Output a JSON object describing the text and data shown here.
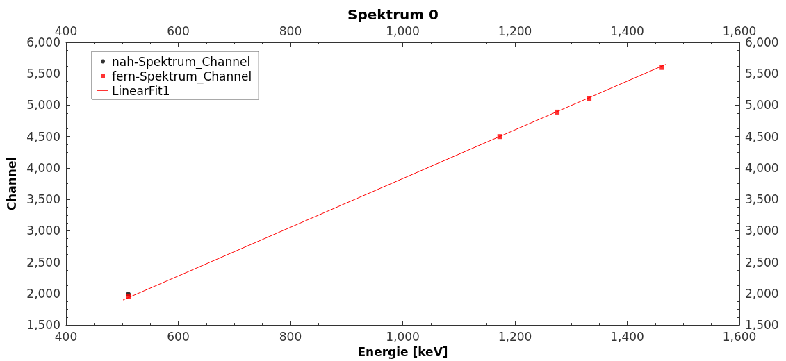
{
  "chart_data": {
    "type": "scatter",
    "title": "Spektrum 0",
    "xlabel": "Energie [keV]",
    "ylabel": "Channel",
    "xlim": [
      400,
      1600
    ],
    "xticks": [
      400,
      600,
      800,
      {
        "value": 1000,
        "label": "1,000"
      },
      {
        "value": 1200,
        "label": "1,200"
      },
      {
        "value": 1400,
        "label": "1,400"
      },
      {
        "value": 1600,
        "label": "1,600"
      }
    ],
    "x2lim": [
      400,
      1600
    ],
    "x2ticks": [
      400,
      600,
      800,
      {
        "value": 1000,
        "label": "1,000"
      },
      {
        "value": 1200,
        "label": "1,200"
      },
      {
        "value": 1400,
        "label": "1,400"
      },
      {
        "value": 1600,
        "label": "1,600"
      }
    ],
    "ylim": [
      1500,
      6000
    ],
    "yticks": [
      {
        "value": 1500,
        "label": "1,500"
      },
      {
        "value": 2000,
        "label": "2,000"
      },
      {
        "value": 2500,
        "label": "2,500"
      },
      {
        "value": 3000,
        "label": "3,000"
      },
      {
        "value": 3500,
        "label": "3,500"
      },
      {
        "value": 4000,
        "label": "4,000"
      },
      {
        "value": 4500,
        "label": "4,500"
      },
      {
        "value": 5000,
        "label": "5,000"
      },
      {
        "value": 5500,
        "label": "5,500"
      },
      {
        "value": 6000,
        "label": "6,000"
      }
    ],
    "y2lim": [
      1500,
      6000
    ],
    "y2ticks": [
      {
        "value": 1500,
        "label": "1,500"
      },
      {
        "value": 2000,
        "label": "2,000"
      },
      {
        "value": 2500,
        "label": "2,500"
      },
      {
        "value": 3000,
        "label": "3,000"
      },
      {
        "value": 3500,
        "label": "3,500"
      },
      {
        "value": 4000,
        "label": "4,000"
      },
      {
        "value": 4500,
        "label": "4,500"
      },
      {
        "value": 5000,
        "label": "5,000"
      },
      {
        "value": 5500,
        "label": "5,500"
      },
      {
        "value": 6000,
        "label": "6,000"
      }
    ],
    "grid": false,
    "legend": "top left",
    "series": [
      {
        "name": "nah-Spektrum_Channel",
        "marker": "circle",
        "color": "#000000",
        "x": [
          511
        ],
        "values": [
          1990
        ]
      },
      {
        "name": "fern-Spektrum_Channel",
        "marker": "square",
        "color": "#ff0000",
        "x": [
          511,
          1173,
          1275,
          1332,
          1461
        ],
        "values": [
          1950,
          4500,
          4890,
          5110,
          5600
        ]
      },
      {
        "name": "LinearFit1",
        "type": "line",
        "marker": "none",
        "color": "#ff0000",
        "x": [
          502,
          1469
        ],
        "values": [
          1900,
          5650
        ]
      }
    ]
  }
}
